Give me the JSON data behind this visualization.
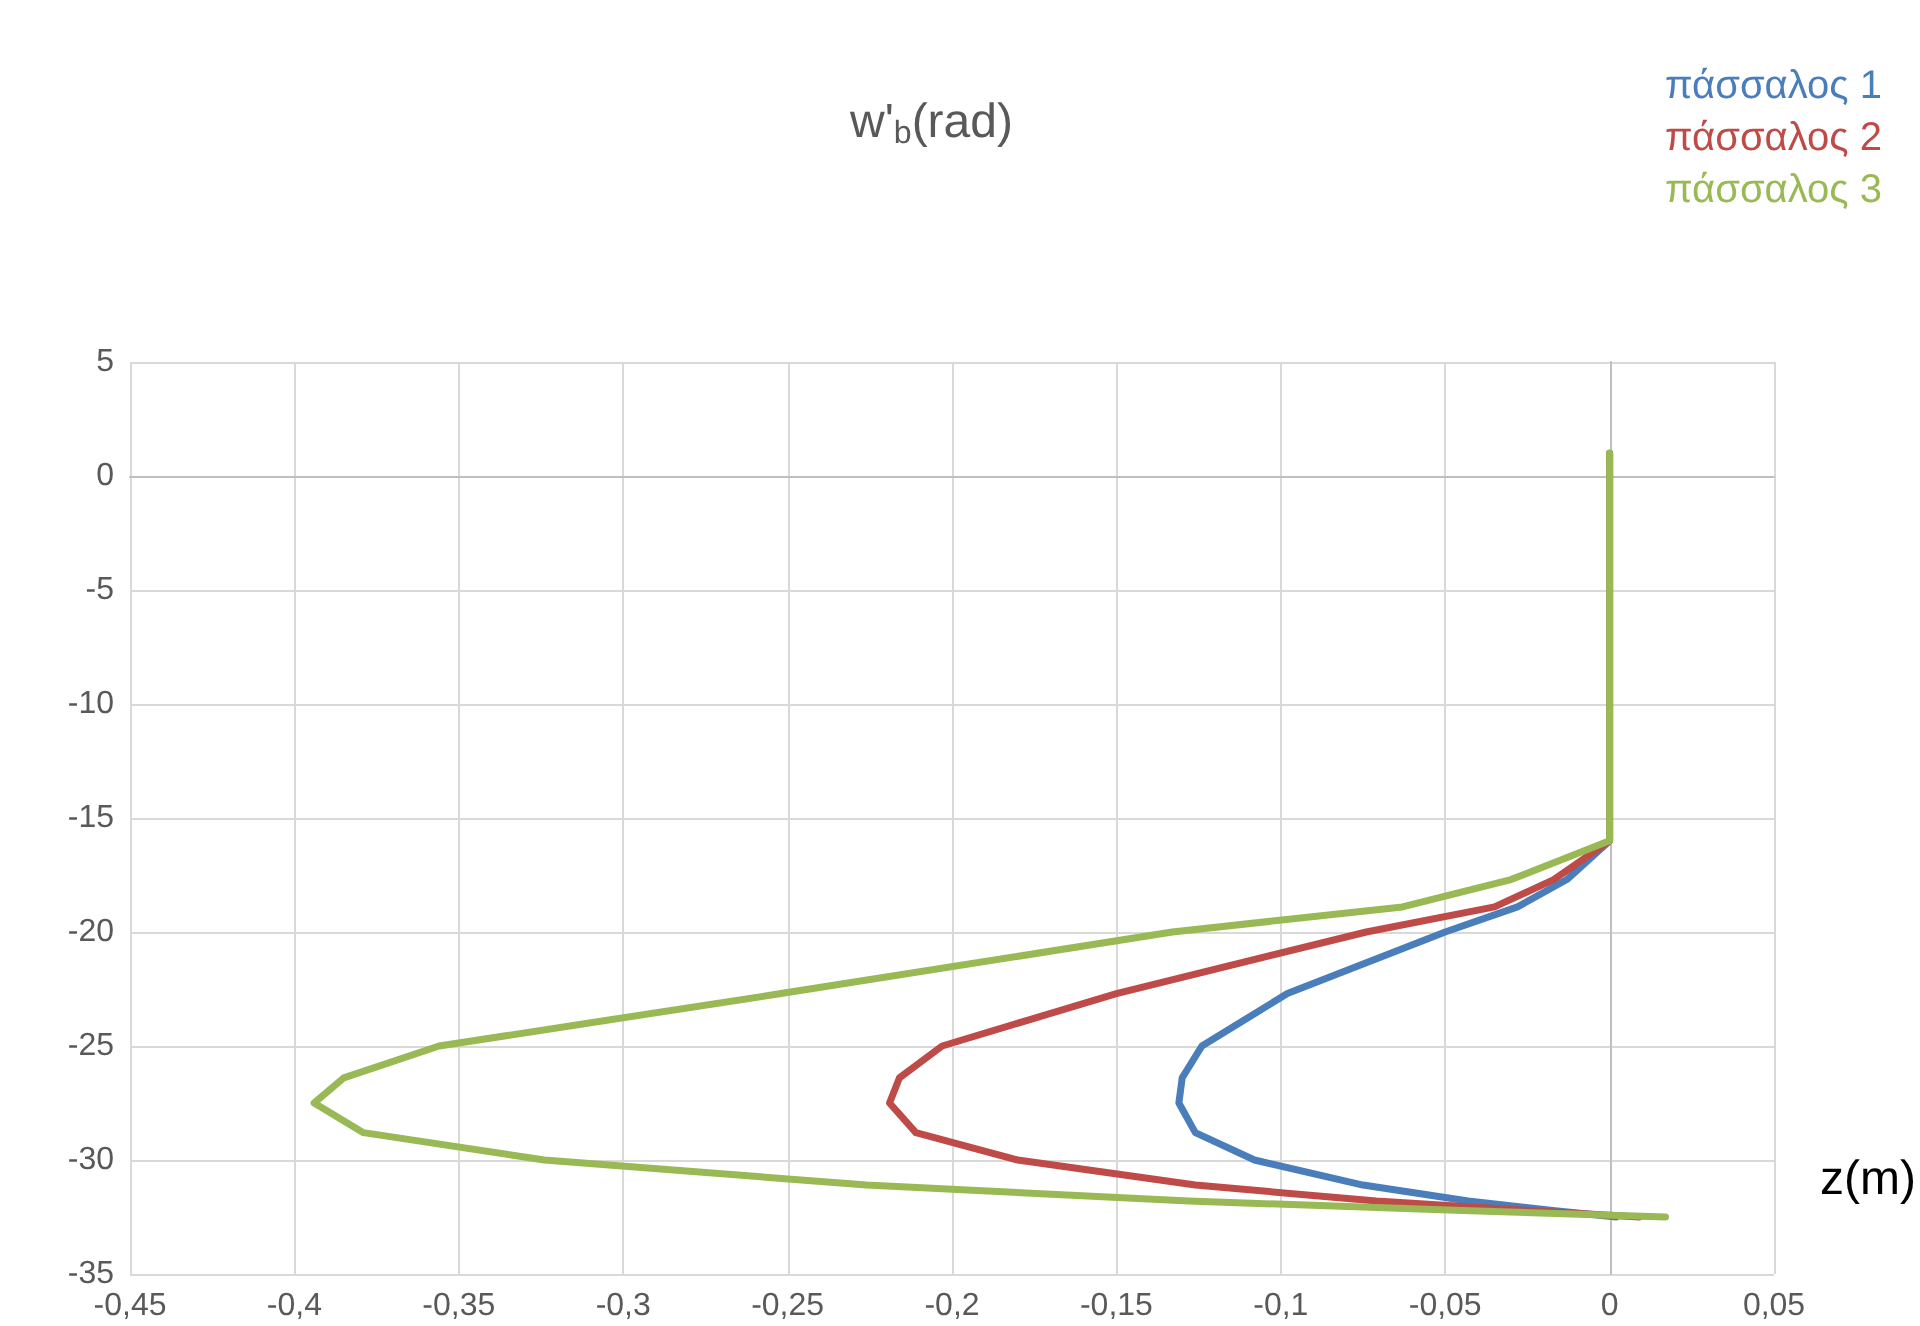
{
  "chart_data": {
    "type": "line",
    "title": "w'$_{b}$(rad)",
    "ylabel": "z(m)",
    "series": [
      {
        "name": "πάσσαλος 1",
        "color": "#4a7ebb",
        "x": [
          0,
          0,
          -0.013,
          -0.028,
          -0.05,
          -0.098,
          -0.124,
          -0.13,
          -0.131,
          -0.126,
          -0.108,
          -0.075,
          -0.043,
          -0.018,
          0.002
        ],
        "values": [
          1,
          -16,
          -17.7,
          -18.9,
          -20,
          -22.7,
          -25,
          -26.4,
          -27.5,
          -28.8,
          -30,
          -31.1,
          -31.8,
          -32.2,
          -32.5
        ]
      },
      {
        "name": "πάσσαλος 2",
        "color": "#be4b48",
        "x": [
          0,
          0,
          -0.017,
          -0.035,
          -0.074,
          -0.15,
          -0.203,
          -0.216,
          -0.219,
          -0.211,
          -0.18,
          -0.126,
          -0.071,
          -0.026,
          0.009
        ],
        "values": [
          1,
          -16,
          -17.7,
          -18.9,
          -20,
          -22.7,
          -25,
          -26.4,
          -27.5,
          -28.8,
          -30,
          -31.1,
          -31.8,
          -32.2,
          -32.5
        ]
      },
      {
        "name": "πάσσαλος 3",
        "color": "#98b954",
        "x": [
          0,
          0,
          -0.03,
          -0.063,
          -0.133,
          -0.252,
          -0.356,
          -0.385,
          -0.394,
          -0.379,
          -0.324,
          -0.226,
          -0.128,
          -0.047,
          0.017
        ],
        "values": [
          1,
          -16,
          -17.7,
          -18.9,
          -20,
          -22.7,
          -25,
          -26.4,
          -27.5,
          -28.8,
          -30,
          -31.1,
          -31.8,
          -32.2,
          -32.5
        ]
      }
    ],
    "xlim": [
      -0.45,
      0.05
    ],
    "xticks": [
      {
        "value": -0.45,
        "label": "-0,45"
      },
      {
        "value": -0.4,
        "label": "-0,4"
      },
      {
        "value": -0.35,
        "label": "-0,35"
      },
      {
        "value": -0.3,
        "label": "-0,3"
      },
      {
        "value": -0.25,
        "label": "-0,25"
      },
      {
        "value": -0.2,
        "label": "-0,2"
      },
      {
        "value": -0.15,
        "label": "-0,15"
      },
      {
        "value": -0.1,
        "label": "-0,1"
      },
      {
        "value": -0.05,
        "label": "-0,05"
      },
      {
        "value": 0,
        "label": "0"
      },
      {
        "value": 0.05,
        "label": "0,05"
      }
    ],
    "ylim": [
      -35,
      5
    ],
    "yticks": [
      -35,
      -30,
      -25,
      -20,
      -15,
      -10,
      -5,
      0,
      5
    ],
    "grid": true,
    "legend": "top right",
    "marker": "none",
    "line_style": "solid"
  }
}
